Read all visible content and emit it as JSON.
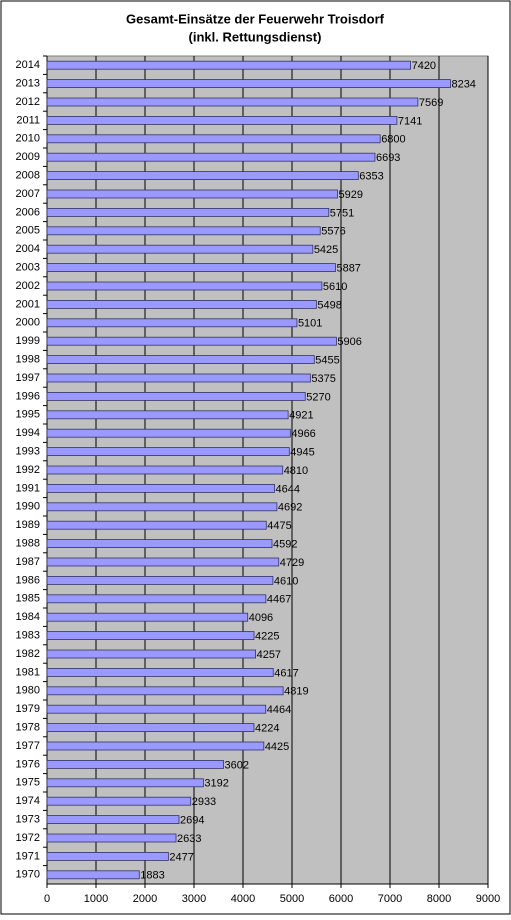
{
  "chart_data": {
    "type": "bar",
    "orientation": "horizontal",
    "title": "Gesamt-Einsätze der Feuerwehr Troisdorf",
    "subtitle": "(inkl. Rettungsdienst)",
    "categories": [
      "2014",
      "2013",
      "2012",
      "2011",
      "2010",
      "2009",
      "2008",
      "2007",
      "2006",
      "2005",
      "2004",
      "2003",
      "2002",
      "2001",
      "2000",
      "1999",
      "1998",
      "1997",
      "1996",
      "1995",
      "1994",
      "1993",
      "1992",
      "1991",
      "1990",
      "1989",
      "1988",
      "1987",
      "1986",
      "1985",
      "1984",
      "1983",
      "1982",
      "1981",
      "1980",
      "1979",
      "1978",
      "1977",
      "1976",
      "1975",
      "1974",
      "1973",
      "1972",
      "1971",
      "1970"
    ],
    "values": [
      7420,
      8234,
      7569,
      7141,
      6800,
      6693,
      6353,
      5929,
      5751,
      5576,
      5425,
      5887,
      5610,
      5498,
      5101,
      5906,
      5455,
      5375,
      5270,
      4921,
      4966,
      4945,
      4810,
      4644,
      4692,
      4475,
      4592,
      4729,
      4610,
      4467,
      4096,
      4225,
      4257,
      4617,
      4819,
      4464,
      4224,
      4425,
      3602,
      3192,
      2933,
      2694,
      2633,
      2477,
      1883
    ],
    "color": "#9999ff",
    "xlim": [
      0,
      9000
    ],
    "xticks": [
      0,
      1000,
      2000,
      3000,
      4000,
      5000,
      6000,
      7000,
      8000,
      9000
    ],
    "grid": true
  }
}
